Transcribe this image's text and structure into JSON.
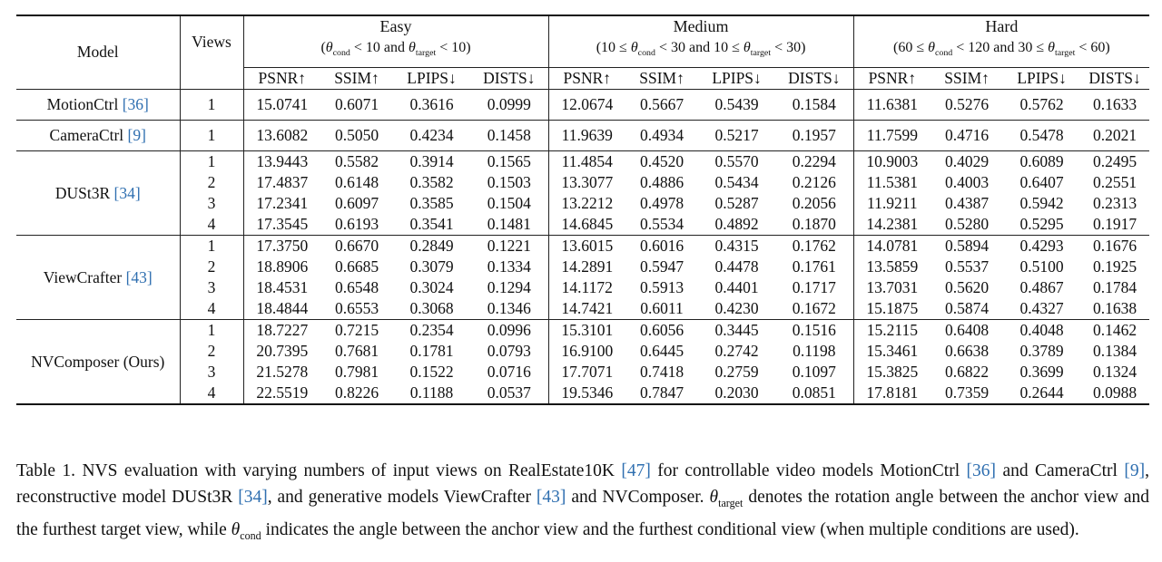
{
  "header": {
    "model": "Model",
    "views": "Views",
    "groups": [
      {
        "title": "Easy",
        "cond": "(θcond < 10 and θtarget < 10)"
      },
      {
        "title": "Medium",
        "cond": "(10 ≤ θcond < 30 and 10 ≤ θtarget < 30)"
      },
      {
        "title": "Hard",
        "cond": "(60 ≤ θcond < 120 and 30 ≤ θtarget < 60)"
      }
    ],
    "metrics": [
      "PSNR↑",
      "SSIM↑",
      "LPIPS↓",
      "DISTS↓"
    ]
  },
  "models": [
    {
      "name": "MotionCtrl",
      "cite": "[36]",
      "rows": [
        {
          "views": "1",
          "values": [
            "15.0741",
            "0.6071",
            "0.3616",
            "0.0999",
            "12.0674",
            "0.5667",
            "0.5439",
            "0.1584",
            "11.6381",
            "0.5276",
            "0.5762",
            "0.1633"
          ]
        }
      ]
    },
    {
      "name": "CameraCtrl",
      "cite": "[9]",
      "rows": [
        {
          "views": "1",
          "values": [
            "13.6082",
            "0.5050",
            "0.4234",
            "0.1458",
            "11.9639",
            "0.4934",
            "0.5217",
            "0.1957",
            "11.7599",
            "0.4716",
            "0.5478",
            "0.2021"
          ]
        }
      ]
    },
    {
      "name": "DUSt3R",
      "cite": "[34]",
      "rows": [
        {
          "views": "1",
          "values": [
            "13.9443",
            "0.5582",
            "0.3914",
            "0.1565",
            "11.4854",
            "0.4520",
            "0.5570",
            "0.2294",
            "10.9003",
            "0.4029",
            "0.6089",
            "0.2495"
          ]
        },
        {
          "views": "2",
          "values": [
            "17.4837",
            "0.6148",
            "0.3582",
            "0.1503",
            "13.3077",
            "0.4886",
            "0.5434",
            "0.2126",
            "11.5381",
            "0.4003",
            "0.6407",
            "0.2551"
          ]
        },
        {
          "views": "3",
          "values": [
            "17.2341",
            "0.6097",
            "0.3585",
            "0.1504",
            "13.2212",
            "0.4978",
            "0.5287",
            "0.2056",
            "11.9211",
            "0.4387",
            "0.5942",
            "0.2313"
          ]
        },
        {
          "views": "4",
          "values": [
            "17.3545",
            "0.6193",
            "0.3541",
            "0.1481",
            "14.6845",
            "0.5534",
            "0.4892",
            "0.1870",
            "14.2381",
            "0.5280",
            "0.5295",
            "0.1917"
          ]
        }
      ]
    },
    {
      "name": "ViewCrafter",
      "cite": "[43]",
      "rows": [
        {
          "views": "1",
          "values": [
            "17.3750",
            "0.6670",
            "0.2849",
            "0.1221",
            "13.6015",
            "0.6016",
            "0.4315",
            "0.1762",
            "14.0781",
            "0.5894",
            "0.4293",
            "0.1676"
          ]
        },
        {
          "views": "2",
          "values": [
            "18.8906",
            "0.6685",
            "0.3079",
            "0.1334",
            "14.2891",
            "0.5947",
            "0.4478",
            "0.1761",
            "13.5859",
            "0.5537",
            "0.5100",
            "0.1925"
          ]
        },
        {
          "views": "3",
          "values": [
            "18.4531",
            "0.6548",
            "0.3024",
            "0.1294",
            "14.1172",
            "0.5913",
            "0.4401",
            "0.1717",
            "13.7031",
            "0.5620",
            "0.4867",
            "0.1784"
          ]
        },
        {
          "views": "4",
          "values": [
            "18.4844",
            "0.6553",
            "0.3068",
            "0.1346",
            "14.7421",
            "0.6011",
            "0.4230",
            "0.1672",
            "15.1875",
            "0.5874",
            "0.4327",
            "0.1638"
          ]
        }
      ]
    },
    {
      "name": "NVComposer (Ours)",
      "cite": "",
      "rows": [
        {
          "views": "1",
          "values": [
            "18.7227",
            "0.7215",
            "0.2354",
            "0.0996",
            "15.3101",
            "0.6056",
            "0.3445",
            "0.1516",
            "15.2115",
            "0.6408",
            "0.4048",
            "0.1462"
          ]
        },
        {
          "views": "2",
          "values": [
            "20.7395",
            "0.7681",
            "0.1781",
            "0.0793",
            "16.9100",
            "0.6445",
            "0.2742",
            "0.1198",
            "15.3461",
            "0.6638",
            "0.3789",
            "0.1384"
          ]
        },
        {
          "views": "3",
          "values": [
            "21.5278",
            "0.7981",
            "0.1522",
            "0.0716",
            "17.7071",
            "0.7418",
            "0.2759",
            "0.1097",
            "15.3825",
            "0.6822",
            "0.3699",
            "0.1324"
          ]
        },
        {
          "views": "4",
          "values": [
            "22.5519",
            "0.8226",
            "0.1188",
            "0.0537",
            "19.5346",
            "0.7847",
            "0.2030",
            "0.0851",
            "17.8181",
            "0.7359",
            "0.2644",
            "0.0988"
          ]
        }
      ]
    }
  ],
  "caption": {
    "segments": [
      {
        "t": "Table 1. NVS evaluation with varying numbers of input views on RealEstate10K "
      },
      {
        "t": "[47]",
        "cite": true
      },
      {
        "t": " for controllable video models MotionCtrl "
      },
      {
        "t": "[36]",
        "cite": true
      },
      {
        "t": " and CameraCtrl "
      },
      {
        "t": "[9]",
        "cite": true
      },
      {
        "t": ", reconstructive model DUSt3R "
      },
      {
        "t": "[34]",
        "cite": true
      },
      {
        "t": ", and generative models ViewCrafter "
      },
      {
        "t": "[43]",
        "cite": true
      },
      {
        "t": " and NVComposer. "
      },
      {
        "t": "θ",
        "math": true
      },
      {
        "t": "target",
        "sub": true
      },
      {
        "t": " denotes the rotation angle between the anchor view and the furthest target view, while "
      },
      {
        "t": "θ",
        "math": true
      },
      {
        "t": "cond",
        "sub": true
      },
      {
        "t": " indicates the angle between the anchor view and the furthest conditional view (when multiple conditions are used)."
      }
    ],
    "link_color": "#2f6fb0"
  }
}
